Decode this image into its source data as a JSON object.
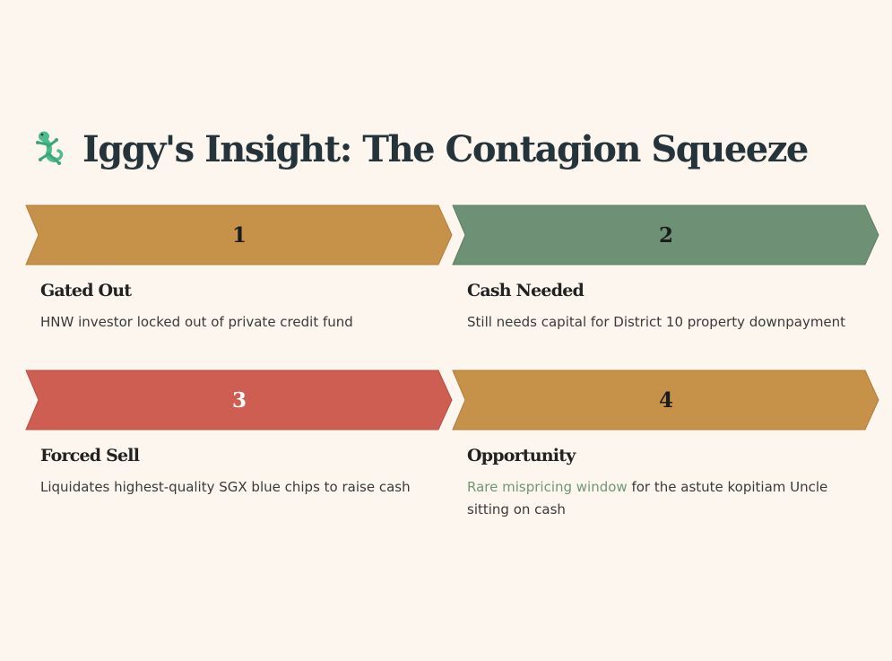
{
  "title": "Iggy's Insight: The Contagion Squeeze",
  "icon": "gecko-icon",
  "colors": {
    "gold": "#c6924a",
    "green": "#6e9075",
    "red": "#cf5e52",
    "highlight": "#6f9874",
    "background": "#fdf6ef"
  },
  "steps": [
    {
      "number": "1",
      "color": "#c6924a",
      "heading": "Gated Out",
      "description": "HNW investor locked out of private credit fund"
    },
    {
      "number": "2",
      "color": "#6e9075",
      "heading": "Cash Needed",
      "description": "Still needs capital for District 10 property downpayment"
    },
    {
      "number": "3",
      "color": "#cf5e52",
      "heading": "Forced Sell",
      "description": "Liquidates highest-quality SGX blue chips to raise cash"
    },
    {
      "number": "4",
      "color": "#c6924a",
      "heading": "Opportunity",
      "highlight": "Rare mispricing window",
      "description": " for the astute kopitiam Uncle sitting on cash"
    }
  ]
}
